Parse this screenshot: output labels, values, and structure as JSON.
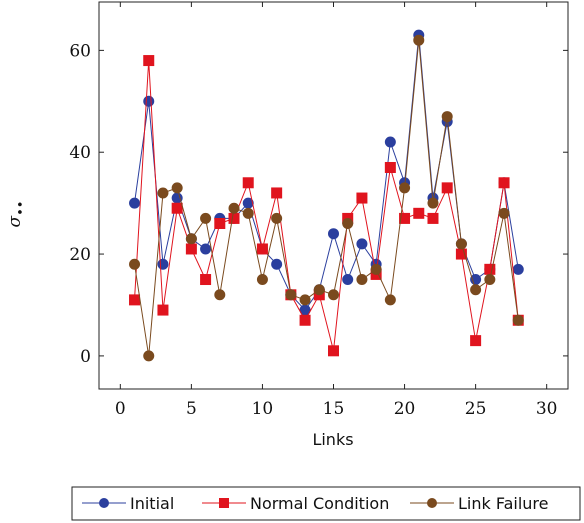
{
  "chart_data": {
    "type": "line",
    "xlabel": "Links",
    "ylabel": "σ",
    "ylabel_suffix": "••",
    "xlim": [
      -1.5,
      31.5
    ],
    "ylim": [
      -6.5,
      69.5
    ],
    "xticks": [
      0,
      5,
      10,
      15,
      20,
      25,
      30
    ],
    "yticks": [
      0,
      20,
      40,
      60
    ],
    "x": [
      1,
      2,
      3,
      4,
      5,
      6,
      7,
      8,
      9,
      10,
      11,
      12,
      13,
      14,
      15,
      16,
      17,
      18,
      19,
      20,
      21,
      22,
      23,
      24,
      25,
      26,
      27,
      28
    ],
    "legend_position": "bottom",
    "series": [
      {
        "name": "Initial",
        "color": "#2b3f9e",
        "marker": "circle",
        "values": [
          30,
          50,
          18,
          31,
          23,
          21,
          27,
          27,
          30,
          21,
          18,
          12,
          9,
          13,
          24,
          15,
          22,
          18,
          42,
          34,
          63,
          31,
          46,
          22,
          15,
          17,
          34,
          17
        ]
      },
      {
        "name": "Normal Condition",
        "color": "#e0141e",
        "marker": "square",
        "values": [
          11,
          58,
          9,
          29,
          21,
          15,
          26,
          27,
          34,
          21,
          32,
          12,
          7,
          12,
          1,
          27,
          31,
          16,
          37,
          27,
          28,
          27,
          33,
          20,
          3,
          17,
          34,
          7
        ]
      },
      {
        "name": "Link Failure",
        "color": "#7a4a1e",
        "marker": "circle",
        "values": [
          18,
          0,
          32,
          33,
          23,
          27,
          12,
          29,
          28,
          15,
          27,
          12,
          11,
          13,
          12,
          26,
          15,
          17,
          11,
          33,
          62,
          30,
          47,
          22,
          13,
          15,
          28,
          7
        ]
      }
    ]
  }
}
